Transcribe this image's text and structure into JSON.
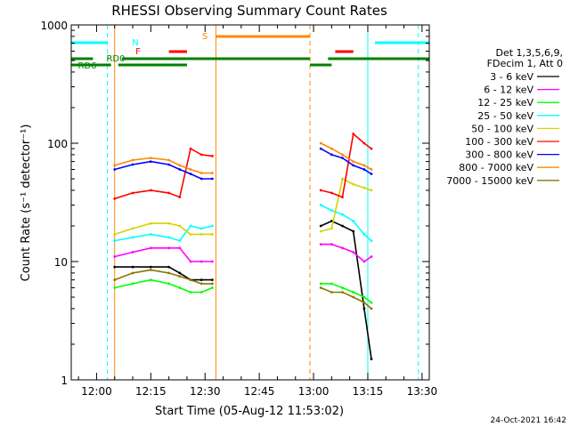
{
  "title": "RHESSI Observing Summary Count Rates",
  "footer_date": "24-Oct-2021 16:42",
  "chart_data": {
    "type": "line",
    "title": "RHESSI Observing Summary Count Rates",
    "xlabel": "Start Time (05-Aug-12 11:53:02)",
    "ylabel": "Count Rate (s⁻¹ detector⁻¹)",
    "yscale": "log",
    "ylim": [
      1,
      1000
    ],
    "xlim": [
      "11:53",
      "13:32"
    ],
    "x_ticks": [
      "12:00",
      "12:15",
      "12:30",
      "12:45",
      "13:00",
      "13:15",
      "13:30"
    ],
    "y_ticks": [
      "1",
      "10",
      "100",
      "1000"
    ],
    "legend_placement": "right",
    "legend_header": [
      "Det 1,3,5,6,9,",
      "FDecim 1, Att 0"
    ],
    "series": [
      {
        "name": "3 - 6 keV",
        "color": "#000000",
        "x": [
          "12:05",
          "12:10",
          "12:15",
          "12:20",
          "12:23",
          "12:26",
          "12:29",
          "12:32",
          "13:02",
          "13:05",
          "13:08",
          "13:11",
          "13:14",
          "13:16"
        ],
        "values": [
          9,
          9,
          9,
          9,
          8,
          7,
          7,
          7,
          20,
          22,
          20,
          18,
          4,
          1.5
        ]
      },
      {
        "name": "6 - 12 keV",
        "color": "#ff00ff",
        "x": [
          "12:05",
          "12:10",
          "12:15",
          "12:20",
          "12:23",
          "12:26",
          "12:29",
          "12:32",
          "13:02",
          "13:05",
          "13:08",
          "13:11",
          "13:14",
          "13:16"
        ],
        "values": [
          11,
          12,
          13,
          13,
          13,
          10,
          10,
          10,
          14,
          14,
          13,
          12,
          10,
          11
        ]
      },
      {
        "name": "12 - 25 keV",
        "color": "#00ff00",
        "x": [
          "12:05",
          "12:10",
          "12:15",
          "12:20",
          "12:23",
          "12:26",
          "12:29",
          "12:32",
          "13:02",
          "13:05",
          "13:08",
          "13:11",
          "13:14",
          "13:16"
        ],
        "values": [
          6,
          6.5,
          7,
          6.5,
          6,
          5.5,
          5.5,
          6,
          6.5,
          6.5,
          6,
          5.5,
          5,
          4.5
        ]
      },
      {
        "name": "25 - 50 keV",
        "color": "#00ffff",
        "x": [
          "12:05",
          "12:10",
          "12:15",
          "12:20",
          "12:23",
          "12:26",
          "12:29",
          "12:32",
          "13:02",
          "13:05",
          "13:08",
          "13:11",
          "13:14",
          "13:16"
        ],
        "values": [
          15,
          16,
          17,
          16,
          15,
          20,
          19,
          20,
          30,
          27,
          25,
          22,
          17,
          15
        ]
      },
      {
        "name": "50 - 100 keV",
        "color": "#d4d400",
        "x": [
          "12:05",
          "12:10",
          "12:15",
          "12:20",
          "12:23",
          "12:26",
          "12:29",
          "12:32",
          "13:02",
          "13:05",
          "13:08",
          "13:11",
          "13:14",
          "13:16"
        ],
        "values": [
          17,
          19,
          21,
          21,
          20,
          17,
          17,
          17,
          18,
          19,
          50,
          45,
          42,
          40
        ]
      },
      {
        "name": "100 - 300 keV",
        "color": "#ff0000",
        "x": [
          "12:05",
          "12:10",
          "12:15",
          "12:20",
          "12:23",
          "12:26",
          "12:29",
          "12:32",
          "13:02",
          "13:05",
          "13:08",
          "13:11",
          "13:14",
          "13:16"
        ],
        "values": [
          34,
          38,
          40,
          38,
          35,
          90,
          80,
          78,
          40,
          38,
          35,
          120,
          100,
          90
        ]
      },
      {
        "name": "300 - 800 keV",
        "color": "#0000ff",
        "x": [
          "12:05",
          "12:10",
          "12:15",
          "12:20",
          "12:23",
          "12:26",
          "12:29",
          "12:32",
          "13:02",
          "13:05",
          "13:08",
          "13:11",
          "13:14",
          "13:16"
        ],
        "values": [
          60,
          66,
          70,
          66,
          60,
          55,
          50,
          50,
          90,
          80,
          75,
          65,
          60,
          55
        ]
      },
      {
        "name": "800 - 7000 keV",
        "color": "#ff8800",
        "x": [
          "12:05",
          "12:10",
          "12:15",
          "12:20",
          "12:23",
          "12:26",
          "12:29",
          "12:32",
          "13:02",
          "13:05",
          "13:08",
          "13:11",
          "13:14",
          "13:16"
        ],
        "values": [
          65,
          72,
          75,
          72,
          65,
          60,
          56,
          56,
          100,
          90,
          80,
          70,
          65,
          60
        ]
      },
      {
        "name": "7000 - 15000 keV",
        "color": "#8b7500",
        "x": [
          "12:05",
          "12:10",
          "12:15",
          "12:20",
          "12:23",
          "12:26",
          "12:29",
          "12:32",
          "13:02",
          "13:05",
          "13:08",
          "13:11",
          "13:14",
          "13:16"
        ],
        "values": [
          7,
          8,
          8.5,
          8,
          7.5,
          7,
          6.5,
          6.5,
          6,
          5.5,
          5.5,
          5,
          4.5,
          4
        ]
      }
    ],
    "annotation_bars": [
      {
        "label": "N",
        "color": "#00ffff",
        "segments": [
          [
            "11:53",
            "12:03"
          ],
          [
            "13:17",
            "13:32"
          ]
        ]
      },
      {
        "label": "S",
        "color": "#ff8800",
        "segments": [
          [
            "12:33",
            "12:59"
          ]
        ]
      },
      {
        "label": "F",
        "color": "#ff0000",
        "segments": [
          [
            "12:20",
            "12:25"
          ],
          [
            "13:06",
            "13:11"
          ]
        ]
      },
      {
        "label": "RD0",
        "color": "#008000",
        "segments": [
          [
            "11:53",
            "11:59"
          ],
          [
            "12:07",
            "12:25"
          ],
          [
            "12:25",
            "12:59"
          ],
          [
            "13:04",
            "13:15"
          ],
          [
            "13:15",
            "13:32"
          ]
        ]
      },
      {
        "label": "RD6",
        "color": "#008000",
        "segments": [
          [
            "11:53",
            "12:04"
          ],
          [
            "12:06",
            "12:25"
          ],
          [
            "12:59",
            "13:05"
          ]
        ]
      }
    ],
    "vertical_markers": [
      {
        "color": "#00ffff",
        "style": "solid",
        "x": "11:53"
      },
      {
        "color": "#00ffff",
        "style": "dashed",
        "x": "12:03"
      },
      {
        "color": "#ff8800",
        "style": "solid",
        "x": "12:05"
      },
      {
        "color": "#ff8800",
        "style": "solid",
        "x": "12:33"
      },
      {
        "color": "#ff8800",
        "style": "dashed",
        "x": "12:59"
      },
      {
        "color": "#00ffff",
        "style": "solid",
        "x": "13:15"
      },
      {
        "color": "#00ffff",
        "style": "dashed",
        "x": "13:29"
      }
    ]
  }
}
